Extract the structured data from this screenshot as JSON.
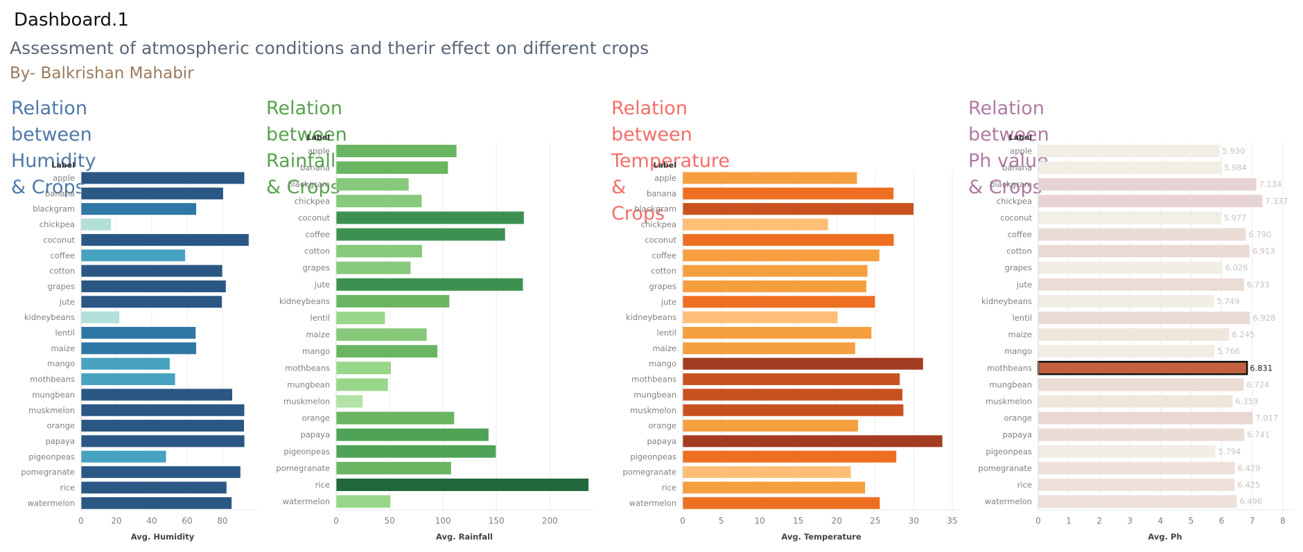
{
  "dashboard_title": "Dashboard.1",
  "subtitle": "Assessment of atmospheric conditions and therir effect on different crops",
  "byline_prefix": "By-",
  "byline_name": " Balkrishan Mahabir",
  "chart_data": [
    {
      "type": "bar",
      "orientation": "horizontal",
      "title": "Relation between Humidity & Crops",
      "title_lines": [
        "Relation between Humidity",
        "& Crops"
      ],
      "title_color": "#4e79a7",
      "row_header": "Label",
      "xlabel": "Avg. Humidity",
      "xlim": [
        0,
        100
      ],
      "xticks": [
        0,
        20,
        40,
        60,
        80
      ],
      "categories": [
        "apple",
        "banana",
        "blackgram",
        "chickpea",
        "coconut",
        "coffee",
        "cotton",
        "grapes",
        "jute",
        "kidneybeans",
        "lentil",
        "maize",
        "mango",
        "mothbeans",
        "mungbean",
        "muskmelon",
        "orange",
        "papaya",
        "pigeonpeas",
        "pomegranate",
        "rice",
        "watermelon"
      ],
      "values": [
        92.33,
        80.36,
        65.12,
        16.86,
        94.84,
        58.87,
        79.84,
        81.88,
        79.64,
        21.61,
        64.8,
        65.09,
        50.16,
        53.16,
        85.5,
        92.34,
        92.17,
        92.4,
        48.06,
        90.13,
        82.27,
        85.16
      ],
      "colors": [
        "#2a5783",
        "#2a5783",
        "#2f77a5",
        "#b3e0d9",
        "#2a5783",
        "#47a1c0",
        "#2a5783",
        "#2a5783",
        "#2a5783",
        "#b3e0d9",
        "#2f77a5",
        "#2f77a5",
        "#47a1c0",
        "#47a1c0",
        "#2a5783",
        "#2a5783",
        "#2a5783",
        "#2a5783",
        "#47a1c0",
        "#2a5783",
        "#2a5783",
        "#2a5783"
      ],
      "show_values": false,
      "grid": true
    },
    {
      "type": "bar",
      "orientation": "horizontal",
      "title": "Relation between Rainfall & Crops",
      "title_lines": [
        "Relation between Rainfall & Crops"
      ],
      "title_color": "#59a14f",
      "row_header": "Label",
      "xlabel": "Avg. Rainfall",
      "xlim": [
        0,
        240
      ],
      "xticks": [
        0,
        50,
        100,
        150,
        200
      ],
      "categories": [
        "apple",
        "banana",
        "blackgram",
        "chickpea",
        "coconut",
        "coffee",
        "cotton",
        "grapes",
        "jute",
        "kidneybeans",
        "lentil",
        "maize",
        "mango",
        "mothbeans",
        "mungbean",
        "muskmelon",
        "orange",
        "papaya",
        "pigeonpeas",
        "pomegranate",
        "rice",
        "watermelon"
      ],
      "values": [
        112.65,
        104.63,
        67.88,
        80.06,
        175.69,
        158.07,
        80.4,
        69.61,
        174.79,
        105.92,
        45.68,
        84.77,
        94.7,
        51.2,
        48.4,
        24.69,
        110.47,
        142.63,
        149.46,
        107.53,
        236.18,
        50.79
      ],
      "colors": [
        "#6ab562",
        "#6ab562",
        "#86c97a",
        "#86c97a",
        "#3d9150",
        "#3d9150",
        "#86c97a",
        "#86c97a",
        "#3d9150",
        "#6ab562",
        "#98d68a",
        "#86c97a",
        "#6ab562",
        "#98d68a",
        "#98d68a",
        "#b2e2a4",
        "#6ab562",
        "#4fa356",
        "#4fa356",
        "#6ab562",
        "#22683d",
        "#98d68a"
      ],
      "show_values": false,
      "grid": true
    },
    {
      "type": "bar",
      "orientation": "horizontal",
      "title": "Relation between Temperature & Crops",
      "title_lines": [
        "Relation between Temperature &",
        "Crops"
      ],
      "title_color": "#f26e6a",
      "row_header": "Label",
      "xlabel": "Avg. Temperature",
      "xlim": [
        0,
        36
      ],
      "xticks": [
        0,
        5,
        10,
        15,
        20,
        25,
        30,
        35
      ],
      "categories": [
        "apple",
        "banana",
        "blackgram",
        "chickpea",
        "coconut",
        "coffee",
        "cotton",
        "grapes",
        "jute",
        "kidneybeans",
        "lentil",
        "maize",
        "mango",
        "mothbeans",
        "mungbean",
        "muskmelon",
        "orange",
        "papaya",
        "pigeonpeas",
        "pomegranate",
        "rice",
        "watermelon"
      ],
      "values": [
        22.63,
        27.38,
        29.97,
        18.87,
        27.41,
        25.54,
        23.99,
        23.85,
        24.96,
        20.12,
        24.51,
        22.39,
        31.21,
        28.19,
        28.53,
        28.66,
        22.77,
        33.72,
        27.74,
        21.84,
        23.69,
        25.59
      ],
      "colors": [
        "#f69f40",
        "#ef6f22",
        "#c7521e",
        "#fdbf78",
        "#ef6f22",
        "#f69f40",
        "#f69f40",
        "#f69f40",
        "#ef6f22",
        "#fdbf78",
        "#f69f40",
        "#f69f40",
        "#a23d21",
        "#c7521e",
        "#c7521e",
        "#c7521e",
        "#f69f40",
        "#a23d21",
        "#ef6f22",
        "#fdbf78",
        "#f69f40",
        "#ef6f22"
      ],
      "show_values": false,
      "grid": true
    },
    {
      "type": "bar",
      "orientation": "horizontal",
      "title": "Relation between Ph value & Crops",
      "title_lines": [
        "Relation between Ph value & Crops"
      ],
      "title_color": "#b07aa1",
      "row_header": "Label",
      "xlabel": "Avg. Ph",
      "xlim": [
        0,
        8.3
      ],
      "xticks": [
        0,
        1,
        2,
        3,
        4,
        5,
        6,
        7,
        8
      ],
      "categories": [
        "apple",
        "banana",
        "blackgram",
        "chickpea",
        "coconut",
        "coffee",
        "cotton",
        "grapes",
        "jute",
        "kidneybeans",
        "lentil",
        "maize",
        "mango",
        "mothbeans",
        "mungbean",
        "muskmelon",
        "orange",
        "papaya",
        "pigeonpeas",
        "pomegranate",
        "rice",
        "watermelon"
      ],
      "values": [
        5.93,
        5.984,
        7.134,
        7.337,
        5.977,
        6.79,
        6.913,
        6.026,
        6.733,
        5.749,
        6.928,
        6.245,
        5.766,
        6.831,
        6.724,
        6.359,
        7.017,
        6.741,
        5.794,
        6.429,
        6.425,
        6.496
      ],
      "labels": [
        "5.930",
        "5.984",
        "7.134",
        "7.337",
        "5.977",
        "6.790",
        "6.913",
        "6.026",
        "6.733",
        "5.749",
        "6.928",
        "6.245",
        "5.766",
        "6.831",
        "6.724",
        "6.359",
        "7.017",
        "6.741",
        "5.794",
        "6.429",
        "6.425",
        "6.496"
      ],
      "colors": [
        "#f1eee6",
        "#f1eee6",
        "#e8d3d4",
        "#e8d3d4",
        "#f1eee6",
        "#ecdcd6",
        "#eadad5",
        "#f1eee6",
        "#ecdcd6",
        "#f1eee6",
        "#eadad5",
        "#f0e6dc",
        "#f1eee6",
        "#c2603f",
        "#ecdcd6",
        "#f0e6dc",
        "#e9d7d4",
        "#ecdcd6",
        "#f1eee6",
        "#efe1da",
        "#efe1da",
        "#efe1da"
      ],
      "highlight": "mothbeans",
      "show_values": true,
      "grid": true
    }
  ]
}
